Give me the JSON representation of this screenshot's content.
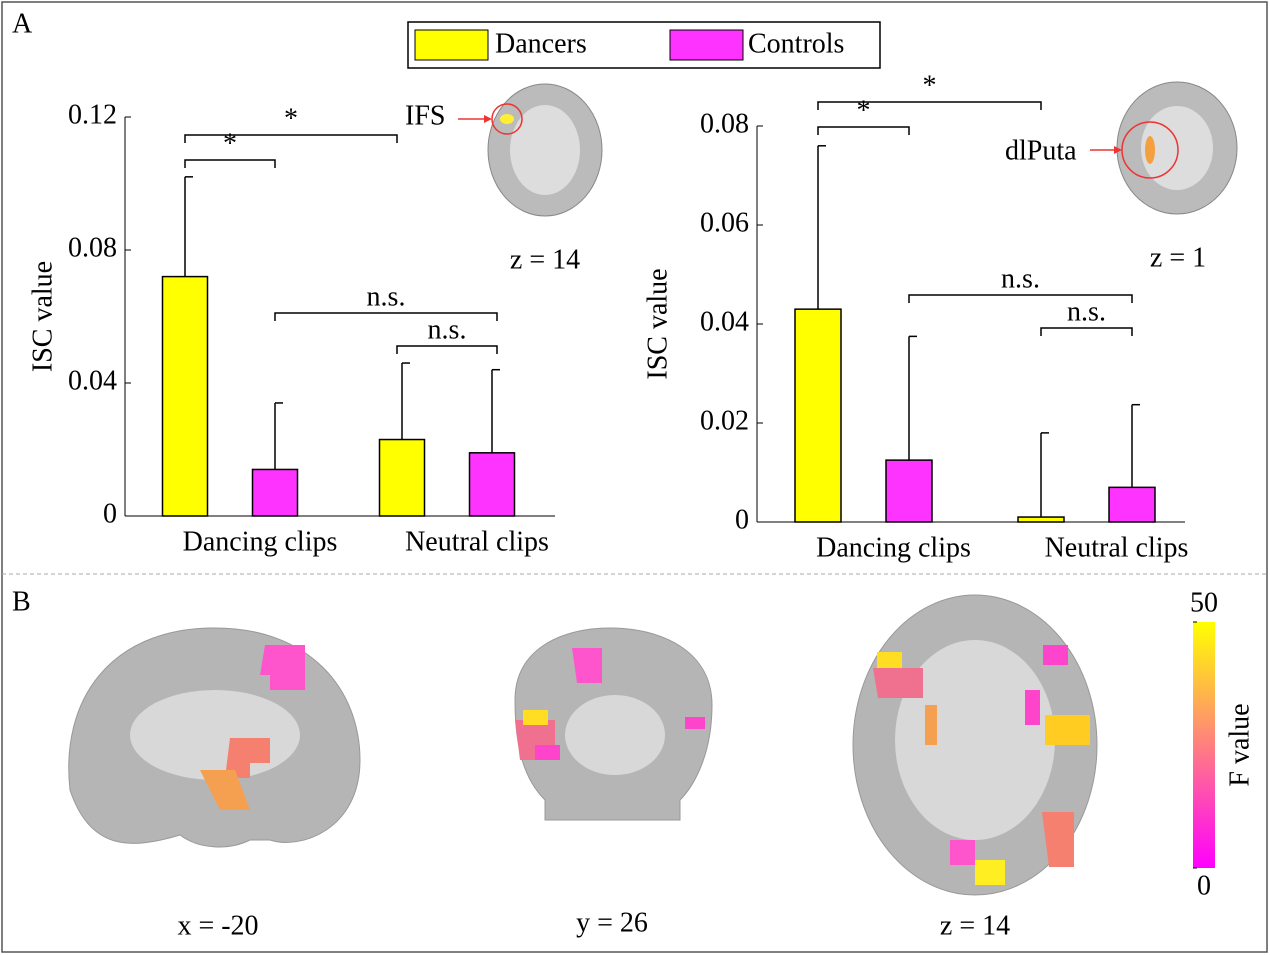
{
  "panels": [
    "A",
    "B"
  ],
  "chart_data": [
    {
      "type": "bar",
      "categories": [
        "Dancing clips",
        "Neutral clips"
      ],
      "ylabel": "ISC value",
      "ylim": [
        0,
        0.12
      ],
      "yticks": [
        0,
        0.04,
        0.08,
        0.12
      ],
      "series": [
        {
          "name": "Dancers",
          "color": "#ffff00",
          "values": [
            0.072,
            0.023
          ],
          "errors": [
            0.03,
            0.023
          ]
        },
        {
          "name": "Controls",
          "color": "#ff33ff",
          "values": [
            0.014,
            0.019
          ],
          "errors": [
            0.02,
            0.025
          ]
        }
      ],
      "annotations": [
        "*",
        "*",
        "n.s.",
        "n.s."
      ],
      "inset_label": "IFS",
      "inset_caption": "z = 14"
    },
    {
      "type": "bar",
      "categories": [
        "Dancing clips",
        "Neutral clips"
      ],
      "ylabel": "ISC value",
      "ylim": [
        0,
        0.08
      ],
      "yticks": [
        0,
        0.02,
        0.04,
        0.06,
        0.08
      ],
      "series": [
        {
          "name": "Dancers",
          "color": "#ffff00",
          "values": [
            0.043,
            0.001
          ],
          "errors": [
            0.033,
            0.017
          ]
        },
        {
          "name": "Controls",
          "color": "#ff33ff",
          "values": [
            0.0125,
            0.007
          ],
          "errors": [
            0.025,
            0.0167
          ]
        }
      ],
      "annotations": [
        "*",
        "*",
        "n.s.",
        "n.s."
      ],
      "inset_label": "dlPuta",
      "inset_caption": "z = 1"
    }
  ],
  "slices": [
    "x = -20",
    "y = 26",
    "z = 14"
  ],
  "colorbar": {
    "title": "F value",
    "ticks": [
      0,
      50
    ],
    "lim": [
      0,
      50
    ],
    "colors": [
      "#ff00ff",
      "#ffff00"
    ]
  }
}
